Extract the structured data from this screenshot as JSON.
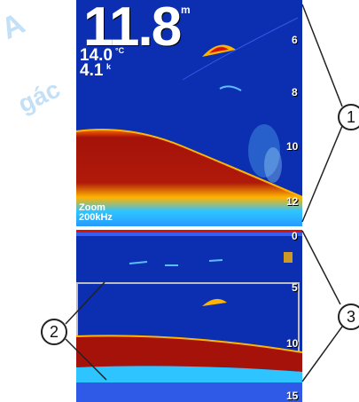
{
  "readouts": {
    "depth": "11.8",
    "depth_unit": "m",
    "temperature": "14.0",
    "temperature_unit": "°C",
    "speed": "4.1",
    "speed_unit": "k"
  },
  "upper_scale": [
    "6",
    "8",
    "10",
    "12"
  ],
  "lower_scale": [
    "0",
    "5",
    "10",
    "15"
  ],
  "zoom_label": "Zoom",
  "frequency_label": "200kHz",
  "callouts": [
    "1",
    "2",
    "3"
  ],
  "colors": {
    "water": "#0b2fb0",
    "bottom_strong": "#a4120a",
    "bottom_mid": "#ffb400",
    "clutter": "#2ec4ff",
    "zoom_box": "#bdbdbd"
  }
}
